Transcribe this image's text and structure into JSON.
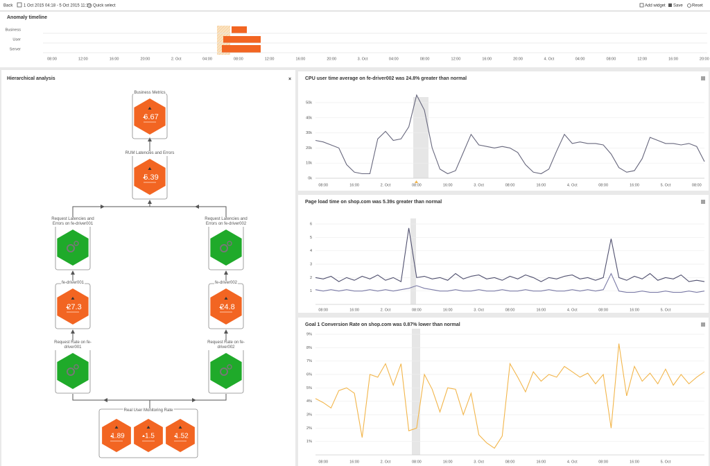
{
  "toolbar": {
    "back": "Back",
    "date_range": "1 Oct 2015 04:18 - 5 Oct 2015 11:10",
    "quick_select": "Quick select",
    "add_widget": "Add widget",
    "save": "Save",
    "reset": "Reset"
  },
  "timeline": {
    "title": "Anomaly timeline",
    "rows": [
      "Business",
      "User",
      "Server"
    ],
    "x_labels": [
      "08:00",
      "12:00",
      "16:00",
      "20:00",
      "2. Oct",
      "04:00",
      "08:00",
      "12:00",
      "16:00",
      "20:00",
      "3. Oct",
      "04:00",
      "08:00",
      "12:00",
      "16:00",
      "20:00",
      "4. Oct",
      "04:00",
      "08:00",
      "12:00",
      "16:00",
      "20:00"
    ]
  },
  "hierarchy": {
    "title": "Hierarchical analysis",
    "close": "×",
    "nodes": [
      {
        "label": "Business Metrics",
        "value": "6.67",
        "color": "#f26522"
      },
      {
        "label": "RUM Latencies and Errors",
        "value": "5.39",
        "color": "#f26522"
      },
      {
        "label": "Request Latencies and Errors on fe-driver001",
        "color": "#1faa2a"
      },
      {
        "label": "Request Latencies and Errors on fe-driver002",
        "color": "#1faa2a"
      },
      {
        "label": "fe-driver001",
        "value": "27.3",
        "color": "#f26522"
      },
      {
        "label": "fe-driver002",
        "value": "24.8",
        "color": "#f26522"
      },
      {
        "label": "Request Rate on fe-driver001",
        "color": "#1faa2a"
      },
      {
        "label": "Request Rate on fe-driver002",
        "color": "#1faa2a"
      }
    ],
    "rum_rate": {
      "label": "Real User Monitoring Rate",
      "values": [
        "1.89",
        "1.5",
        "1.52"
      ],
      "color": "#f26522"
    }
  },
  "chart_data": [
    {
      "type": "line",
      "title": "CPU user time average on fe-driver002 was 24.8% greater than normal",
      "categories": [
        null,
        "08:00",
        null,
        null,
        null,
        "16:00",
        null,
        null,
        null,
        "2. Oct",
        null,
        null,
        null,
        "08:00",
        null,
        null,
        null,
        "16:00",
        null,
        null,
        null,
        "3. Oct",
        null,
        null,
        null,
        "08:00",
        null,
        null,
        null,
        "16:00",
        null,
        null,
        null,
        "4. Oct",
        null,
        null,
        null,
        "08:00",
        null,
        null,
        null,
        "16:00",
        null,
        null,
        null,
        "5. Oct",
        null,
        null,
        null,
        "08:00",
        null
      ],
      "values": [
        25000,
        24000,
        22000,
        20000,
        9000,
        4000,
        3000,
        3000,
        26000,
        31000,
        25000,
        26000,
        34000,
        55000,
        45000,
        20000,
        6000,
        3000,
        5000,
        17000,
        29000,
        22000,
        21000,
        20000,
        21000,
        20000,
        17000,
        9000,
        4000,
        3000,
        6000,
        18000,
        29000,
        23000,
        24000,
        23000,
        23000,
        22000,
        16000,
        7000,
        4000,
        5000,
        13000,
        27000,
        25000,
        23000,
        23000,
        22000,
        23000,
        21000,
        11000
      ],
      "color": "#66667c",
      "ylim": [
        0,
        50000
      ],
      "yticks": [
        {
          "value": 0,
          "label": "0k"
        },
        {
          "value": 10000,
          "label": "10k"
        },
        {
          "value": 20000,
          "label": "20k"
        },
        {
          "value": 30000,
          "label": "30k"
        },
        {
          "value": 40000,
          "label": "40k"
        },
        {
          "value": 50000,
          "label": "50k"
        }
      ],
      "grid": true
    },
    {
      "type": "line",
      "title": "Page load time on shop.com was 5.39s greater than normal",
      "categories": [
        null,
        "08:00",
        null,
        null,
        null,
        "16:00",
        null,
        null,
        null,
        "2. Oct",
        null,
        null,
        null,
        "08:00",
        null,
        null,
        null,
        "16:00",
        null,
        null,
        null,
        "3. Oct",
        null,
        null,
        null,
        "08:00",
        null,
        null,
        null,
        "16:00",
        null,
        null,
        null,
        "4. Oct",
        null,
        null,
        null,
        "08:00",
        null,
        null,
        null,
        "16:00",
        null,
        null,
        null,
        "5. Oct",
        null,
        null,
        null,
        null,
        null
      ],
      "series": [
        {
          "color": "#4f4f6e",
          "values": [
            2.0,
            1.9,
            2.1,
            1.7,
            2.0,
            1.8,
            2.1,
            1.9,
            2.2,
            1.8,
            2.0,
            1.7,
            5.7,
            2.0,
            2.1,
            1.9,
            2.0,
            1.8,
            2.3,
            1.9,
            2.1,
            2.2,
            1.9,
            2.0,
            1.8,
            2.1,
            1.9,
            2.2,
            2.0,
            1.7,
            2.0,
            1.9,
            2.1,
            2.2,
            1.9,
            2.0,
            1.8,
            2.0,
            4.9,
            2.0,
            1.8,
            2.1,
            1.9,
            2.3,
            1.8,
            2.0,
            1.9,
            2.2,
            1.7,
            1.8,
            1.7
          ]
        },
        {
          "color": "#7a7aa6",
          "values": [
            1.1,
            1.0,
            1.1,
            1.0,
            1.1,
            1.0,
            1.0,
            1.1,
            1.0,
            1.1,
            1.0,
            1.1,
            1.2,
            1.4,
            1.2,
            1.1,
            1.0,
            1.0,
            1.1,
            1.0,
            1.0,
            1.1,
            1.0,
            1.0,
            1.1,
            1.0,
            1.0,
            1.1,
            1.0,
            1.0,
            1.1,
            1.0,
            1.0,
            1.1,
            1.0,
            1.1,
            1.0,
            1.1,
            2.3,
            1.0,
            0.9,
            0.9,
            1.0,
            0.9,
            0.9,
            1.0,
            0.9,
            0.9,
            1.0,
            0.9,
            1.0
          ]
        }
      ],
      "ylim": [
        0,
        6
      ],
      "yticks": [
        1,
        2,
        3,
        4,
        5,
        6
      ],
      "grid": true
    },
    {
      "type": "line",
      "title": "Goal 1 Conversion Rate on shop.com was 0.87% lower than normal",
      "categories": [
        null,
        "08:00",
        null,
        null,
        null,
        "16:00",
        null,
        null,
        null,
        "2. Oct",
        null,
        null,
        null,
        "08:00",
        null,
        null,
        null,
        "16:00",
        null,
        null,
        null,
        "3. Oct",
        null,
        null,
        null,
        "08:00",
        null,
        null,
        null,
        "16:00",
        null,
        null,
        null,
        "4. Oct",
        null,
        null,
        null,
        "08:00",
        null,
        null,
        null,
        "16:00",
        null,
        null,
        null,
        "5. Oct",
        null,
        null,
        null,
        null,
        null
      ],
      "values": [
        4.2,
        3.9,
        3.5,
        4.8,
        5.0,
        4.6,
        1.3,
        6.0,
        5.8,
        6.8,
        5.2,
        6.8,
        1.8,
        2.0,
        6.0,
        4.9,
        3.2,
        5.0,
        4.9,
        3.0,
        4.6,
        1.5,
        0.9,
        0.5,
        1.4,
        6.8,
        5.8,
        4.7,
        6.2,
        5.5,
        6.0,
        5.8,
        6.6,
        6.2,
        5.8,
        6.1,
        5.3,
        6.0,
        2.0,
        8.3,
        4.4,
        6.6,
        5.5,
        6.1,
        5.3,
        6.4,
        5.2,
        6.0,
        5.3,
        5.8,
        6.2
      ],
      "color": "#f2b54a",
      "ylim": [
        0,
        9
      ],
      "yticks": [
        {
          "value": 1,
          "label": "1%"
        },
        {
          "value": 2,
          "label": "2%"
        },
        {
          "value": 3,
          "label": "3%"
        },
        {
          "value": 4,
          "label": "4%"
        },
        {
          "value": 5,
          "label": "5%"
        },
        {
          "value": 6,
          "label": "6%"
        },
        {
          "value": 7,
          "label": "7%"
        },
        {
          "value": 8,
          "label": "8%"
        },
        {
          "value": 9,
          "label": "9%"
        }
      ],
      "grid": true
    }
  ]
}
